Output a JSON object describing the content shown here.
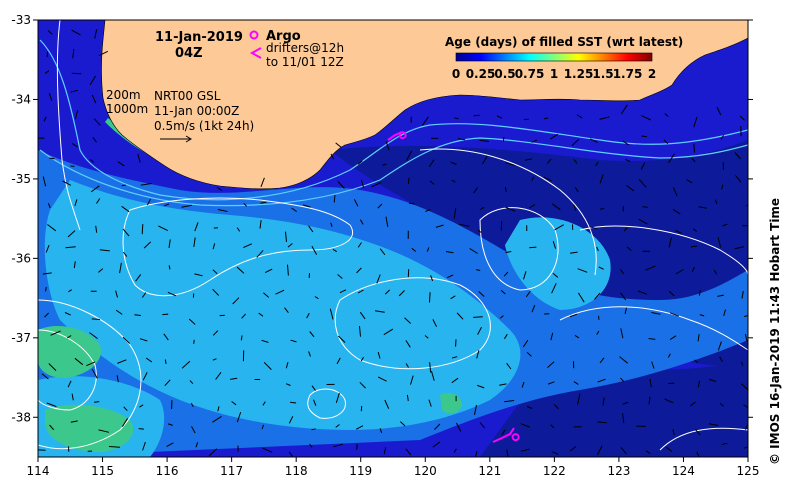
{
  "figure": {
    "title_date": "11-Jan-2019",
    "title_time": "04Z",
    "legend": {
      "argo_label": "Argo",
      "drifter_label_line1": "drifters@12h",
      "drifter_label_line2": "to 11/01 12Z",
      "argo_color": "#ff00ff",
      "drifter_color": "#ff00ff"
    },
    "contour_legend": {
      "line1": "200m",
      "line2": "1000m"
    },
    "current_info": {
      "line1": "NRT00 GSL",
      "line2": "11-Jan 00:00Z",
      "line3": "0.5m/s (1kt 24h)"
    },
    "credit": "© IMOS 16-Jan-2019 11:43 Hobart Time"
  },
  "colorbar": {
    "title": "Age (days) of filled SST (wrt latest)",
    "tick_labels": [
      "0",
      "0.25",
      "0.5",
      "0.75",
      "1",
      "1.25",
      "1.5",
      "1.75",
      "2"
    ],
    "range": [
      0,
      2
    ],
    "colors": [
      "#00008f",
      "#0000ff",
      "#0080ff",
      "#00ffff",
      "#80ff80",
      "#ffff00",
      "#ff8000",
      "#ff0000",
      "#800000"
    ]
  },
  "axes": {
    "x_ticks": [
      "114",
      "115",
      "116",
      "117",
      "118",
      "119",
      "120",
      "121",
      "122",
      "123",
      "124",
      "125"
    ],
    "y_ticks": [
      "-33",
      "-34",
      "-35",
      "-36",
      "-37",
      "-38"
    ],
    "x_range": [
      114,
      125
    ],
    "y_range": [
      -38.5,
      -33
    ]
  },
  "colors": {
    "land": "#fcc997",
    "deep_blue": "#1a1acf",
    "dark_blue": "#0d1a9a",
    "mid_blue": "#1a70e6",
    "light_blue": "#28b4ef",
    "green": "#3cc88c",
    "contour": "#ffffff",
    "isobath": "#60d0ff"
  },
  "markers": {
    "argo": [
      {
        "lon": 119.65,
        "lat": -34.45
      },
      {
        "lon": 121.4,
        "lat": -38.25
      }
    ]
  }
}
